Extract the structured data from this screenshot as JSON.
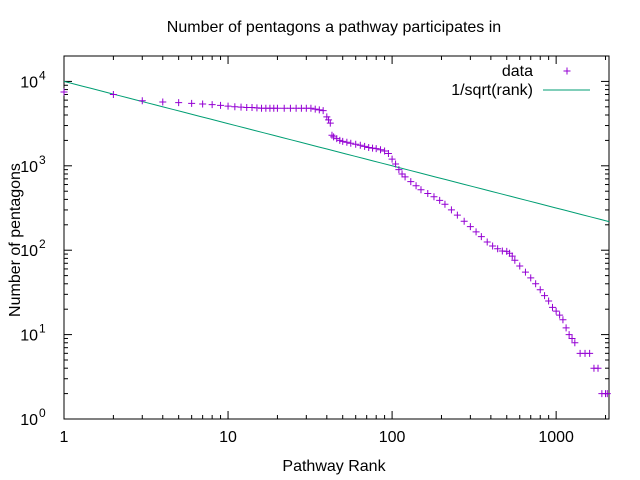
{
  "chart_data": {
    "type": "scatter",
    "title": "Number of pentagons a pathway participates in",
    "xlabel": "Pathway Rank",
    "ylabel": "Number of pentagons",
    "xscale": "log",
    "yscale": "log",
    "xlim": [
      1,
      2100
    ],
    "ylim": [
      1,
      20000
    ],
    "grid": false,
    "legend_position": "top-right",
    "x_ticks": [
      {
        "value": 1,
        "label": "1"
      },
      {
        "value": 10,
        "label": "10"
      },
      {
        "value": 100,
        "label": "100"
      },
      {
        "value": 1000,
        "label": "1000"
      }
    ],
    "y_ticks": [
      {
        "value": 1,
        "base": "10",
        "exp": "0"
      },
      {
        "value": 10,
        "base": "10",
        "exp": "1"
      },
      {
        "value": 100,
        "base": "10",
        "exp": "2"
      },
      {
        "value": 1000,
        "base": "10",
        "exp": "3"
      },
      {
        "value": 10000,
        "base": "10",
        "exp": "4"
      }
    ],
    "series": [
      {
        "name": "data",
        "style": "points",
        "marker": "+",
        "color": "#9400d3",
        "x": [
          1,
          2,
          3,
          4,
          5,
          6,
          7,
          8,
          9,
          10,
          11,
          12,
          13,
          14,
          15,
          16,
          17,
          18,
          19,
          20,
          22,
          24,
          26,
          28,
          30,
          32,
          34,
          36,
          38,
          40,
          41,
          42,
          43,
          44,
          46,
          48,
          50,
          53,
          56,
          60,
          64,
          68,
          72,
          76,
          80,
          85,
          90,
          95,
          100,
          105,
          110,
          115,
          120,
          130,
          140,
          150,
          165,
          180,
          195,
          210,
          230,
          250,
          275,
          300,
          325,
          350,
          380,
          410,
          440,
          470,
          500,
          520,
          540,
          560,
          600,
          650,
          700,
          750,
          800,
          850,
          900,
          950,
          1000,
          1050,
          1100,
          1150,
          1200,
          1250,
          1300,
          1400,
          1500,
          1600,
          1700,
          1800,
          1900,
          2000,
          2050
        ],
        "y": [
          7500,
          7000,
          5900,
          5700,
          5600,
          5500,
          5400,
          5300,
          5200,
          5100,
          5000,
          4950,
          4900,
          4900,
          4850,
          4800,
          4800,
          4800,
          4800,
          4800,
          4800,
          4800,
          4800,
          4800,
          4800,
          4800,
          4700,
          4600,
          4500,
          3800,
          3500,
          3200,
          2300,
          2200,
          2100,
          2000,
          1950,
          1900,
          1850,
          1800,
          1750,
          1700,
          1650,
          1620,
          1600,
          1550,
          1500,
          1400,
          1200,
          1050,
          900,
          800,
          740,
          650,
          580,
          520,
          470,
          430,
          390,
          350,
          300,
          260,
          220,
          190,
          165,
          145,
          125,
          112,
          104,
          98,
          97,
          92,
          85,
          76,
          65,
          55,
          47,
          40,
          34,
          29,
          25,
          21,
          19,
          17,
          15,
          12,
          10,
          9,
          8,
          6,
          6,
          6,
          4,
          4,
          2,
          2,
          2
        ]
      },
      {
        "name": "1/sqrt(rank)",
        "style": "line",
        "color": "#009e73",
        "function": "10000/sqrt(x)",
        "x": [
          1,
          2100
        ],
        "y": [
          10000,
          218.2
        ]
      }
    ]
  }
}
